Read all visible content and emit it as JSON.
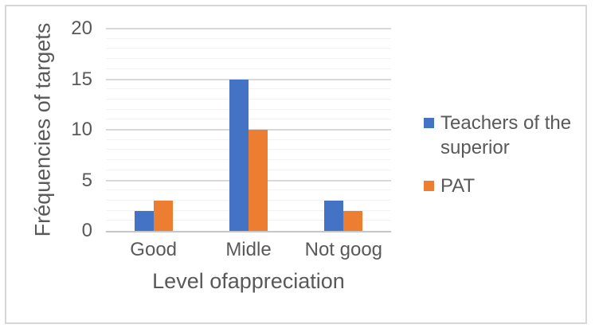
{
  "chart_data": {
    "type": "bar",
    "title": "",
    "categories": [
      "Good",
      "Midle",
      "Not goog"
    ],
    "series": [
      {
        "name": "Teachers of the superior",
        "color": "#4472C4",
        "values": [
          2,
          15,
          3
        ]
      },
      {
        "name": "PAT",
        "color": "#ED7D31",
        "values": [
          3,
          10,
          2
        ]
      }
    ],
    "xlabel": "Level ofappreciation",
    "ylabel": "Fréquencies of targets",
    "ylim": [
      0,
      20
    ],
    "yticks": [
      0,
      5,
      10,
      15,
      20
    ],
    "major_unit": 5,
    "minor_unit": 1,
    "grid": "on",
    "legend_position": "right",
    "colors": {
      "text": "#595959",
      "major_gridline": "#D9D9D9",
      "minor_gridline": "#F2F2F2",
      "axis_line": "#C6C6C6",
      "frame_border": "#D7D7D7",
      "background": "#FFFFFF"
    }
  }
}
